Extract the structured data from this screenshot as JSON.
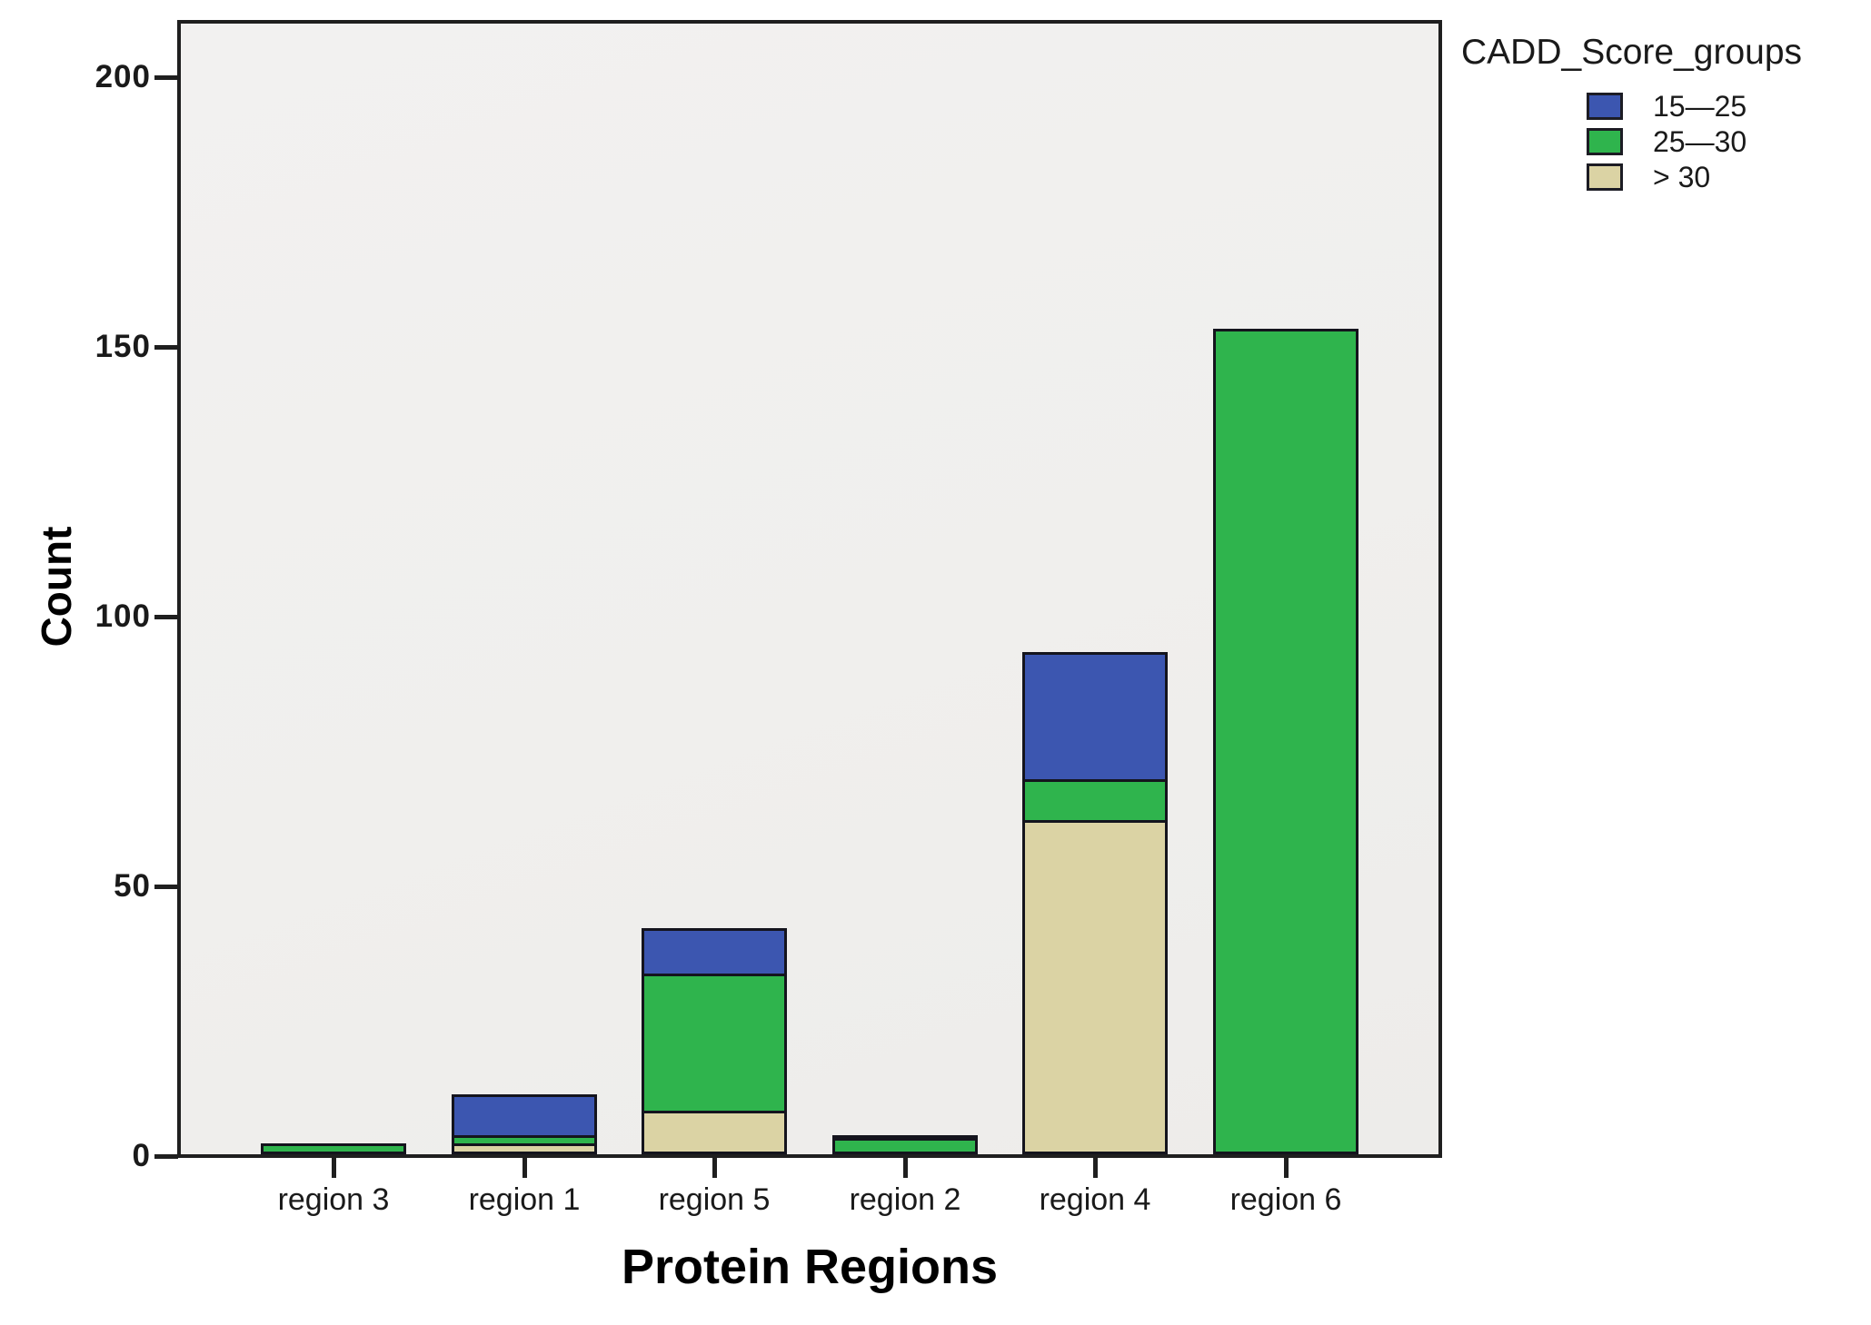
{
  "chart_data": {
    "type": "bar",
    "stacked": true,
    "title": "",
    "xlabel": "Protein Regions",
    "ylabel": "Count",
    "categories": [
      "region 3",
      "region 1",
      "region 5",
      "region 2",
      "region 4",
      "region 6"
    ],
    "series": [
      {
        "name": "15—25",
        "color": "#3C56B0",
        "values": [
          0,
          8,
          9,
          1,
          24,
          0
        ]
      },
      {
        "name": "25—30",
        "color": "#2FB44D",
        "values": [
          2,
          2,
          26,
          3,
          8,
          153
        ]
      },
      {
        "name": "> 30",
        "color": "#DBD3A4",
        "values": [
          0,
          2,
          8,
          0,
          62,
          0
        ]
      }
    ],
    "stack_totals": [
      2,
      12,
      43,
      4,
      94,
      153
    ],
    "ylim": [
      0,
      212
    ],
    "yticks": [
      0,
      50,
      100,
      150,
      200
    ],
    "grid": false,
    "legend": {
      "title": "CADD_Score_groups",
      "position": "top-right"
    }
  },
  "colors": {
    "plot_background": "#F0EFED",
    "frame": "#1F1F1F",
    "bar_border": "#14141D",
    "text": "#1A1A1A"
  }
}
